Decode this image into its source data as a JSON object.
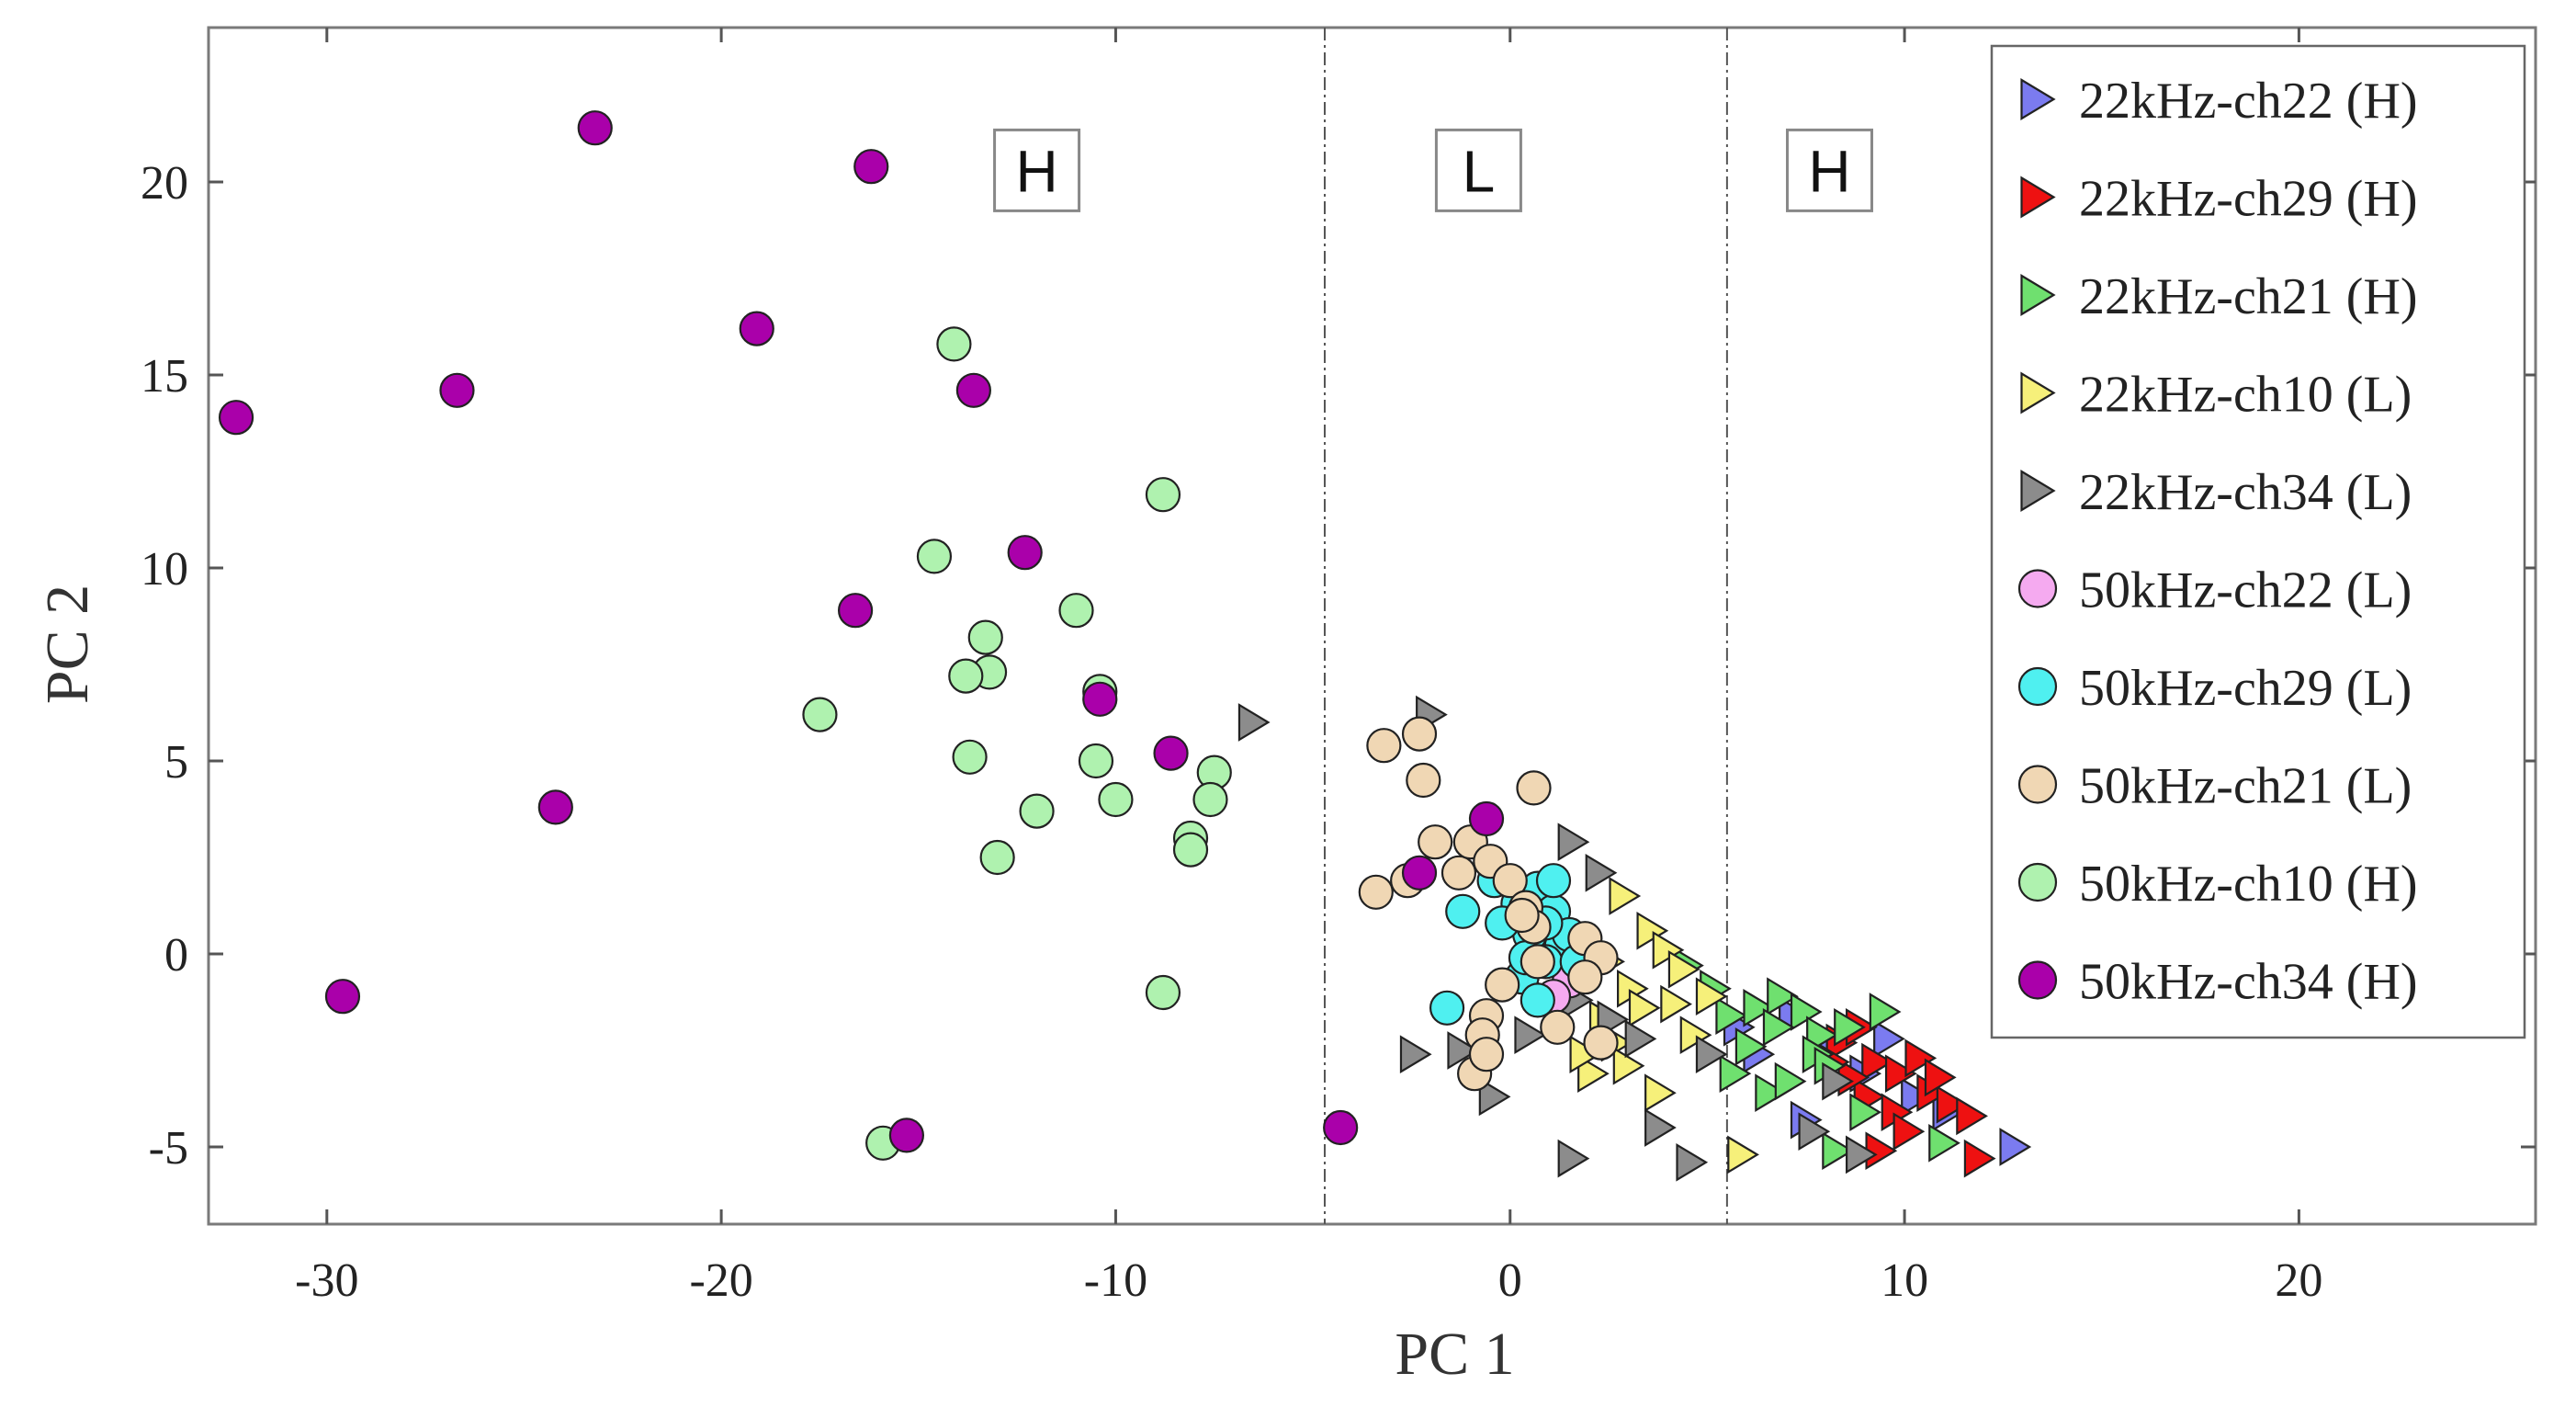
{
  "chart_data": {
    "type": "scatter",
    "title": "",
    "xlabel": "PC 1",
    "ylabel": "PC 2",
    "xlim": [
      -33,
      26
    ],
    "ylim": [
      -7,
      24
    ],
    "xticks": [
      -30,
      -20,
      -10,
      0,
      10,
      20
    ],
    "yticks": [
      -5,
      0,
      5,
      10,
      15,
      20
    ],
    "grid": false,
    "legend_position": "top-right",
    "dividers": [
      -4.7,
      5.5
    ],
    "regions": [
      {
        "label": "H",
        "x": -12,
        "y": 20.3
      },
      {
        "label": "L",
        "x": -0.8,
        "y": 20.3
      },
      {
        "label": "H",
        "x": 8.1,
        "y": 20.3
      }
    ],
    "series": [
      {
        "name": "22kHz-ch22 (H)",
        "marker": "triangle-right",
        "color": "#7b7bf0",
        "points": [
          [
            7.2,
            -1.6
          ],
          [
            8.1,
            -2.4
          ],
          [
            9.0,
            -3.1
          ],
          [
            9.6,
            -2.2
          ],
          [
            10.3,
            -3.7
          ],
          [
            11.1,
            -4.1
          ],
          [
            7.5,
            -4.3
          ],
          [
            12.8,
            -5.0
          ],
          [
            6.3,
            -2.6
          ],
          [
            5.8,
            -1.9
          ]
        ]
      },
      {
        "name": "22kHz-ch29 (H)",
        "marker": "triangle-right",
        "color": "#ee1111",
        "points": [
          [
            8.4,
            -2.3
          ],
          [
            8.9,
            -1.9
          ],
          [
            9.3,
            -2.8
          ],
          [
            9.9,
            -3.1
          ],
          [
            10.4,
            -2.7
          ],
          [
            10.7,
            -3.6
          ],
          [
            11.2,
            -3.9
          ],
          [
            11.7,
            -4.2
          ],
          [
            9.1,
            -3.7
          ],
          [
            8.7,
            -3.2
          ],
          [
            9.8,
            -4.1
          ],
          [
            10.1,
            -4.6
          ],
          [
            9.4,
            -5.1
          ],
          [
            11.9,
            -5.3
          ],
          [
            8.2,
            -2.8
          ],
          [
            10.9,
            -3.2
          ]
        ]
      },
      {
        "name": "22kHz-ch21 (H)",
        "marker": "triangle-right",
        "color": "#6fe06f",
        "points": [
          [
            4.5,
            -0.3
          ],
          [
            5.2,
            -0.9
          ],
          [
            5.6,
            -1.6
          ],
          [
            6.3,
            -1.4
          ],
          [
            6.9,
            -1.1
          ],
          [
            7.5,
            -1.5
          ],
          [
            7.9,
            -2.1
          ],
          [
            8.6,
            -1.9
          ],
          [
            9.5,
            -1.5
          ],
          [
            6.1,
            -2.4
          ],
          [
            6.6,
            -3.6
          ],
          [
            7.1,
            -3.3
          ],
          [
            7.8,
            -2.6
          ],
          [
            8.3,
            -5.1
          ],
          [
            9.0,
            -4.1
          ],
          [
            11.0,
            -4.9
          ],
          [
            5.7,
            -3.1
          ],
          [
            6.8,
            -1.9
          ],
          [
            8.1,
            -2.9
          ]
        ]
      },
      {
        "name": "22kHz-ch10 (L)",
        "marker": "triangle-right",
        "color": "#f6f07a",
        "points": [
          [
            3.6,
            0.6
          ],
          [
            4.0,
            0.1
          ],
          [
            4.4,
            -0.4
          ],
          [
            3.1,
            -0.9
          ],
          [
            3.4,
            -1.4
          ],
          [
            4.2,
            -1.3
          ],
          [
            5.1,
            -1.1
          ],
          [
            2.4,
            -1.7
          ],
          [
            2.7,
            -2.3
          ],
          [
            2.1,
            -3.1
          ],
          [
            1.9,
            -2.6
          ],
          [
            3.8,
            -3.6
          ],
          [
            5.9,
            -5.2
          ],
          [
            2.9,
            1.5
          ],
          [
            2.5,
            -0.2
          ],
          [
            4.7,
            -2.1
          ],
          [
            3.0,
            -2.9
          ]
        ]
      },
      {
        "name": "22kHz-ch34 (L)",
        "marker": "triangle-right",
        "color": "#8c8c8c",
        "points": [
          [
            -6.5,
            6.0
          ],
          [
            -2.0,
            6.2
          ],
          [
            1.6,
            2.9
          ],
          [
            2.3,
            2.1
          ],
          [
            1.2,
            0.6
          ],
          [
            1.7,
            -1.2
          ],
          [
            2.6,
            -1.7
          ],
          [
            0.5,
            -2.1
          ],
          [
            -1.2,
            -2.5
          ],
          [
            -2.4,
            -2.6
          ],
          [
            -0.4,
            -3.7
          ],
          [
            1.6,
            -5.3
          ],
          [
            3.8,
            -4.5
          ],
          [
            4.6,
            -5.4
          ],
          [
            5.1,
            -2.6
          ],
          [
            7.7,
            -4.6
          ],
          [
            8.3,
            -3.3
          ],
          [
            8.9,
            -5.2
          ],
          [
            3.3,
            -2.2
          ],
          [
            0.9,
            -1.1
          ]
        ]
      },
      {
        "name": "50kHz-ch22 (L)",
        "marker": "circle",
        "color": "#f5aaf0",
        "points": [
          [
            1.5,
            -0.7
          ],
          [
            1.1,
            -1.1
          ],
          [
            1.8,
            -0.3
          ]
        ]
      },
      {
        "name": "50kHz-ch29 (L)",
        "marker": "circle",
        "color": "#4ff0f0",
        "points": [
          [
            -1.2,
            1.1
          ],
          [
            -0.4,
            1.9
          ],
          [
            0.2,
            1.3
          ],
          [
            0.7,
            1.7
          ],
          [
            1.1,
            1.1
          ],
          [
            0.5,
            0.5
          ],
          [
            1.3,
            0.2
          ],
          [
            0.9,
            -0.2
          ],
          [
            1.5,
            0.5
          ],
          [
            0.3,
            -0.6
          ],
          [
            0.7,
            -1.2
          ],
          [
            -0.2,
            0.8
          ],
          [
            1.7,
            -0.2
          ],
          [
            -1.6,
            -1.4
          ],
          [
            1.1,
            1.9
          ],
          [
            0.4,
            -0.1
          ],
          [
            0.9,
            0.8
          ]
        ]
      },
      {
        "name": "50kHz-ch21 (L)",
        "marker": "circle",
        "color": "#f0d7b4",
        "points": [
          [
            -3.2,
            5.4
          ],
          [
            -2.3,
            5.7
          ],
          [
            -2.2,
            4.5
          ],
          [
            0.6,
            4.3
          ],
          [
            -1.9,
            2.9
          ],
          [
            -1.3,
            2.1
          ],
          [
            -2.6,
            1.9
          ],
          [
            -3.4,
            1.6
          ],
          [
            -1.0,
            2.9
          ],
          [
            -0.5,
            2.4
          ],
          [
            0.0,
            1.9
          ],
          [
            0.4,
            1.2
          ],
          [
            0.6,
            0.7
          ],
          [
            1.9,
            0.4
          ],
          [
            2.3,
            -0.1
          ],
          [
            1.9,
            -0.6
          ],
          [
            0.7,
            -0.2
          ],
          [
            -0.2,
            -0.8
          ],
          [
            1.2,
            -1.9
          ],
          [
            -0.6,
            -1.6
          ],
          [
            -0.7,
            -2.1
          ],
          [
            -0.9,
            -3.1
          ],
          [
            2.3,
            -2.3
          ],
          [
            -0.6,
            -2.6
          ],
          [
            0.3,
            1.0
          ]
        ]
      },
      {
        "name": "50kHz-ch10 (H)",
        "marker": "circle",
        "color": "#aff2af",
        "points": [
          [
            -14.1,
            15.8
          ],
          [
            -8.8,
            11.9
          ],
          [
            -14.6,
            10.3
          ],
          [
            -13.3,
            8.2
          ],
          [
            -11.0,
            8.9
          ],
          [
            -13.2,
            7.3
          ],
          [
            -13.8,
            7.2
          ],
          [
            -10.4,
            6.8
          ],
          [
            -17.5,
            6.2
          ],
          [
            -13.7,
            5.1
          ],
          [
            -10.5,
            5.0
          ],
          [
            -7.5,
            4.7
          ],
          [
            -10.0,
            4.0
          ],
          [
            -7.6,
            4.0
          ],
          [
            -12.0,
            3.7
          ],
          [
            -8.1,
            3.0
          ],
          [
            -8.1,
            2.7
          ],
          [
            -13.0,
            2.5
          ],
          [
            -8.8,
            -1.0
          ],
          [
            -15.9,
            -4.9
          ]
        ]
      },
      {
        "name": "50kHz-ch34 (H)",
        "marker": "circle",
        "color": "#aa00aa",
        "points": [
          [
            -23.2,
            21.4
          ],
          [
            -16.2,
            20.4
          ],
          [
            -19.1,
            16.2
          ],
          [
            -26.7,
            14.6
          ],
          [
            -13.6,
            14.6
          ],
          [
            -32.3,
            13.9
          ],
          [
            -12.3,
            10.4
          ],
          [
            -16.6,
            8.9
          ],
          [
            -10.4,
            6.6
          ],
          [
            -8.6,
            5.2
          ],
          [
            -24.2,
            3.8
          ],
          [
            -29.6,
            -1.1
          ],
          [
            -15.3,
            -4.7
          ],
          [
            -4.3,
            -4.5
          ],
          [
            -2.3,
            2.1
          ],
          [
            -0.6,
            3.5
          ]
        ]
      }
    ]
  }
}
